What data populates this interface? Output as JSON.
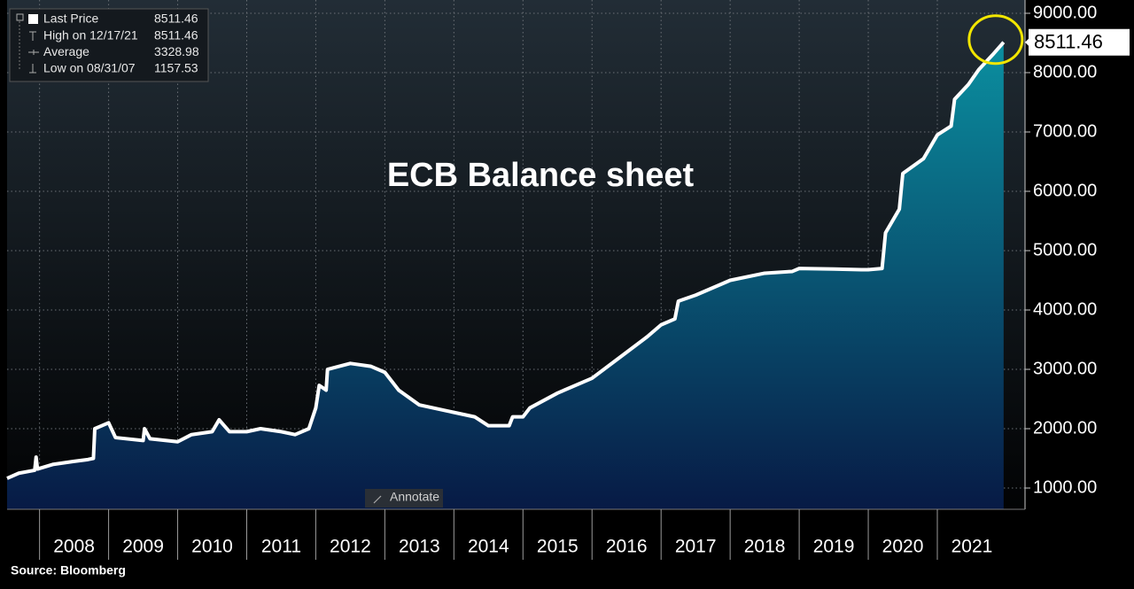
{
  "chart_data": {
    "type": "area",
    "title": "ECB Balance sheet",
    "source": "Source: Bloomberg",
    "annotate_label": "Annotate",
    "series": [
      {
        "name": "Last Price",
        "color": "#ffffff",
        "x": [
          2007.53,
          2007.7,
          2007.93,
          2007.95,
          2007.97,
          2008.2,
          2008.5,
          2008.7,
          2008.78,
          2008.8,
          2008.9,
          2009.0,
          2009.1,
          2009.5,
          2009.52,
          2009.6,
          2010.0,
          2010.2,
          2010.5,
          2010.6,
          2010.75,
          2011.0,
          2011.2,
          2011.5,
          2011.7,
          2011.9,
          2012.0,
          2012.05,
          2012.15,
          2012.17,
          2012.5,
          2012.8,
          2013.0,
          2013.2,
          2013.5,
          2013.9,
          2014.3,
          2014.5,
          2014.8,
          2014.85,
          2015.0,
          2015.1,
          2015.5,
          2016.0,
          2016.4,
          2016.8,
          2017.0,
          2017.2,
          2017.25,
          2017.5,
          2017.9,
          2018.0,
          2018.5,
          2018.9,
          2019.0,
          2019.5,
          2019.9,
          2020.0,
          2020.2,
          2020.25,
          2020.45,
          2020.5,
          2020.8,
          2021.0,
          2021.2,
          2021.25,
          2021.45,
          2021.6,
          2021.8,
          2021.96
        ],
        "values": [
          1164,
          1250,
          1300,
          1520,
          1320,
          1400,
          1450,
          1480,
          1500,
          2000,
          2050,
          2100,
          1850,
          1800,
          2000,
          1830,
          1780,
          1900,
          1950,
          2150,
          1950,
          1950,
          2000,
          1950,
          1900,
          2000,
          2350,
          2730,
          2650,
          3000,
          3100,
          3050,
          2950,
          2650,
          2400,
          2300,
          2200,
          2050,
          2050,
          2200,
          2200,
          2350,
          2600,
          2850,
          3200,
          3550,
          3750,
          3850,
          4150,
          4250,
          4450,
          4500,
          4620,
          4650,
          4700,
          4690,
          4680,
          4680,
          4700,
          5300,
          5700,
          6300,
          6550,
          6950,
          7100,
          7550,
          7800,
          8050,
          8300,
          8511.46
        ]
      }
    ],
    "stats": [
      {
        "label": "High on 12/17/21",
        "value": 8511.46
      },
      {
        "label": "Average",
        "value": 3328.98
      },
      {
        "label": "Low on 08/31/07",
        "value": 1157.53
      }
    ],
    "xlim": [
      2007.53,
      2022.27
    ],
    "xticks": [
      2008,
      2009,
      2010,
      2011,
      2012,
      2013,
      2014,
      2015,
      2016,
      2017,
      2018,
      2019,
      2020,
      2021
    ],
    "ylim": [
      642,
      9224
    ],
    "yticks": [
      {
        "value": 1000,
        "label": "1000.00"
      },
      {
        "value": 2000,
        "label": "2000.00"
      },
      {
        "value": 3000,
        "label": "3000.00"
      },
      {
        "value": 4000,
        "label": "4000.00"
      },
      {
        "value": 5000,
        "label": "5000.00"
      },
      {
        "value": 6000,
        "label": "6000.00"
      },
      {
        "value": 7000,
        "label": "7000.00"
      },
      {
        "value": 8000,
        "label": "8000.00"
      },
      {
        "value": 9000,
        "label": "9000.00"
      }
    ],
    "grid": true,
    "area_colors": [
      "#0b8fa0",
      "#071a45"
    ]
  }
}
